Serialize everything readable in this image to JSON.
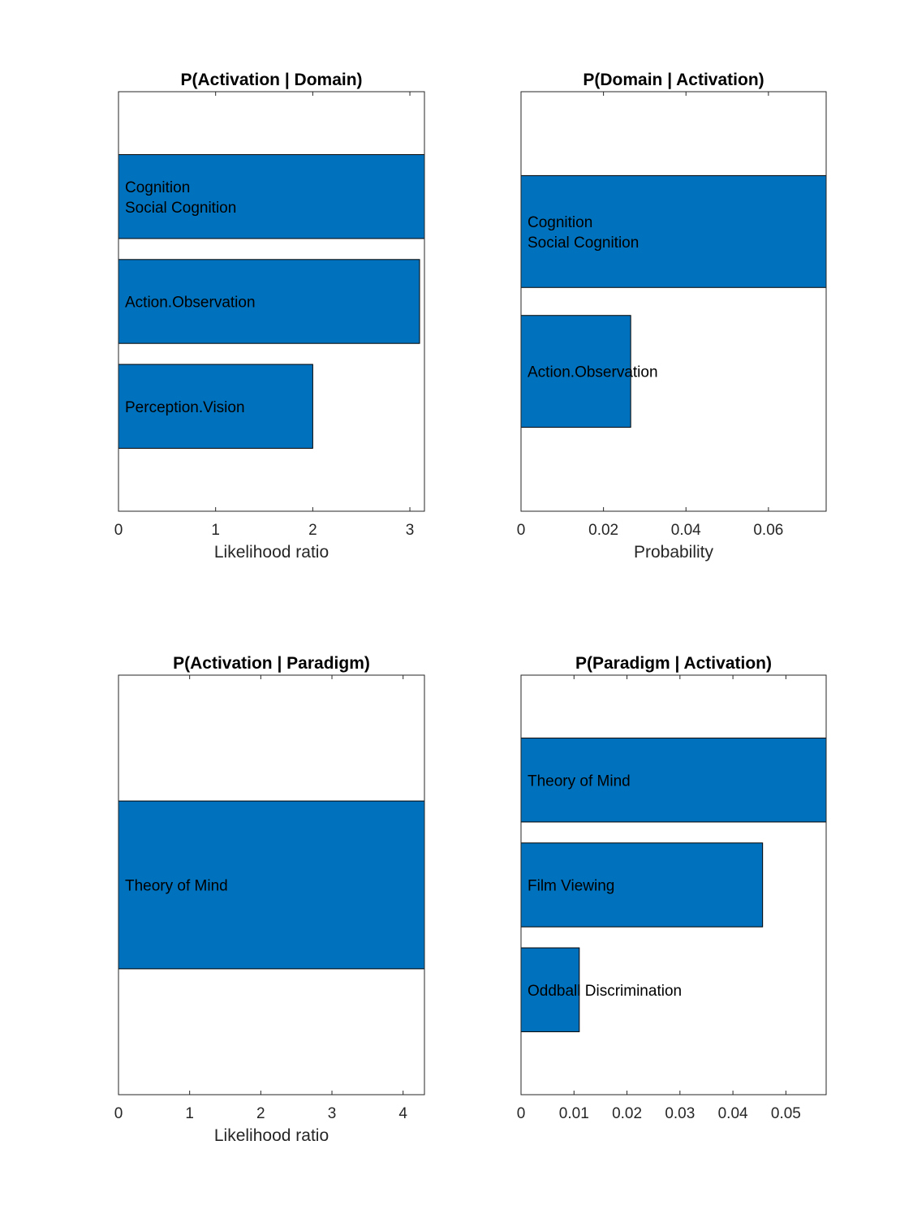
{
  "chart_data": [
    {
      "type": "bar",
      "orientation": "horizontal",
      "title": "P(Activation | Domain)",
      "xlabel": "Likelihood ratio",
      "xlim": [
        0,
        3.15
      ],
      "xticks": [
        0,
        1,
        2,
        3
      ],
      "xtick_labels": [
        "0",
        "1",
        "2",
        "3"
      ],
      "bars": [
        {
          "label_lines": [
            "Cognition",
            "Social Cognition"
          ],
          "value": 3.15
        },
        {
          "label_lines": [
            "Action.Observation"
          ],
          "value": 3.1
        },
        {
          "label_lines": [
            "Perception.Vision"
          ],
          "value": 2.0
        }
      ],
      "grid": false,
      "bar_color": "#0072BD"
    },
    {
      "type": "bar",
      "orientation": "horizontal",
      "title": "P(Domain | Activation)",
      "xlabel": "Probability",
      "xlim": [
        0,
        0.074
      ],
      "xticks": [
        0,
        0.02,
        0.04,
        0.06
      ],
      "xtick_labels": [
        "0",
        "0.02",
        "0.04",
        "0.06"
      ],
      "bars": [
        {
          "label_lines": [
            "Cognition",
            "Social Cognition"
          ],
          "value": 0.074
        },
        {
          "label_lines": [
            "Action.Observation"
          ],
          "value": 0.0266
        }
      ],
      "grid": false,
      "bar_color": "#0072BD"
    },
    {
      "type": "bar",
      "orientation": "horizontal",
      "title": "P(Activation | Paradigm)",
      "xlabel": "Likelihood ratio",
      "xlim": [
        0,
        4.3
      ],
      "xticks": [
        0,
        1,
        2,
        3,
        4
      ],
      "xtick_labels": [
        "0",
        "1",
        "2",
        "3",
        "4"
      ],
      "bars": [
        {
          "label_lines": [
            "Theory of Mind"
          ],
          "value": 4.3
        }
      ],
      "grid": false,
      "bar_color": "#0072BD"
    },
    {
      "type": "bar",
      "orientation": "horizontal",
      "title": "P(Paradigm | Activation)",
      "xlabel": "",
      "xlim": [
        0,
        0.0576
      ],
      "xticks": [
        0,
        0.01,
        0.02,
        0.03,
        0.04,
        0.05
      ],
      "xtick_labels": [
        "0",
        "0.01",
        "0.02",
        "0.03",
        "0.04",
        "0.05"
      ],
      "bars": [
        {
          "label_lines": [
            "Theory of Mind"
          ],
          "value": 0.0576
        },
        {
          "label_lines": [
            "Film Viewing"
          ],
          "value": 0.0456
        },
        {
          "label_lines": [
            "Oddball Discrimination"
          ],
          "value": 0.011
        }
      ],
      "grid": false,
      "bar_color": "#0072BD"
    }
  ]
}
